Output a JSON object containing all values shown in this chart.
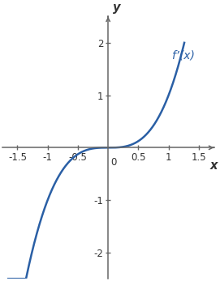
{
  "curve_label": "f’(x)",
  "curve_color": "#2a5fa5",
  "curve_linewidth": 1.8,
  "xlim": [
    -1.75,
    1.75
  ],
  "ylim": [
    -2.5,
    2.5
  ],
  "xticks": [
    -1.5,
    -1.0,
    -0.5,
    0.5,
    1.0,
    1.5
  ],
  "yticks": [
    -2,
    -1,
    1,
    2
  ],
  "x_start": -1.65,
  "x_end": 1.26,
  "background_color": "#ffffff",
  "axis_color": "#666666",
  "label_color": "#333333",
  "tick_fontsize": 8.5,
  "label_fontsize": 10.5,
  "curve_label_fontsize": 10
}
